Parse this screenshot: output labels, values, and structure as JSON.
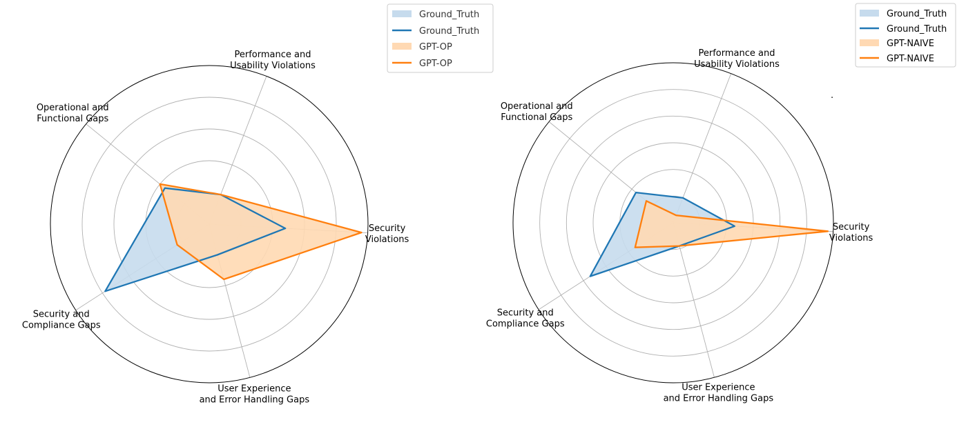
{
  "chart_data": [
    {
      "type": "radar",
      "axes": [
        "Security\nViolations",
        "Performance and\nUsability Violations",
        "Operational and\nFunctional Gaps",
        "Security and\nCompliance Gaps",
        "User Experience\nand Error Handling Gaps"
      ],
      "rlim": [
        0,
        5
      ],
      "grid": true,
      "legend_position": "upper-right",
      "legend": [
        "Ground_Truth",
        "Ground_Truth",
        "GPT-OP",
        "GPT-OP"
      ],
      "series": [
        {
          "name": "Ground_Truth",
          "color": "#1f77b4",
          "fill": "#c6dbed",
          "values": [
            2.4,
            1.0,
            1.8,
            3.9,
            1.0
          ]
        },
        {
          "name": "GPT-OP",
          "color": "#ff7f0e",
          "fill": "#ffd9b3",
          "values": [
            4.8,
            1.0,
            2.0,
            1.2,
            1.8
          ]
        }
      ]
    },
    {
      "type": "radar",
      "axes": [
        "Security\nViolations",
        "Performance and\nUsability Violations",
        "Operational and\nFunctional Gaps",
        "Security and\nCompliance Gaps",
        "User Experience\nand Error Handling Gaps"
      ],
      "rlim": [
        0,
        6
      ],
      "grid": true,
      "legend_position": "upper-right",
      "legend": [
        "Ground_Truth",
        "Ground_Truth",
        "GPT-NAIVE",
        "GPT-NAIVE"
      ],
      "extra_text": "·",
      "series": [
        {
          "name": "Ground_Truth",
          "color": "#1f77b4",
          "fill": "#c6dbed",
          "values": [
            2.3,
            1.0,
            1.8,
            3.7,
            0.9
          ]
        },
        {
          "name": "GPT-NAIVE",
          "color": "#ff7f0e",
          "fill": "#ffd9b3",
          "values": [
            5.8,
            0.3,
            1.3,
            1.7,
            0.9
          ]
        }
      ]
    }
  ]
}
